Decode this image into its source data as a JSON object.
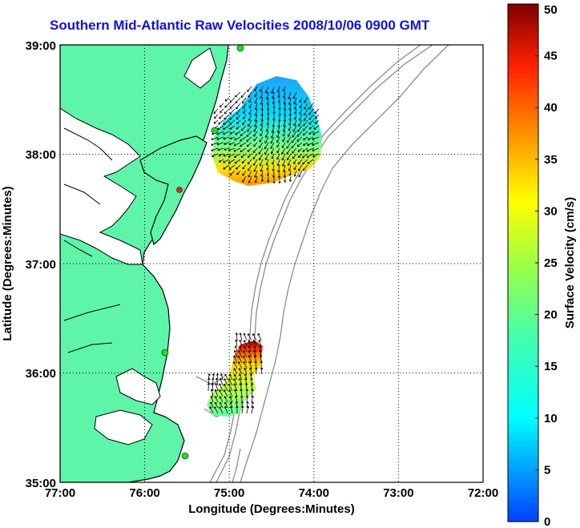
{
  "title": "Southern Mid-Atlantic Raw Velocities 2008/10/06 0900 GMT",
  "xlabel": "Longitude (Degrees:Minutes)",
  "ylabel": "Latitude (Degrees:Minutes)",
  "x_ticks": [
    "77:00",
    "76:00",
    "75:00",
    "74:00",
    "73:00",
    "72:00"
  ],
  "y_ticks": [
    "39:00",
    "38:00",
    "37:00",
    "36:00",
    "35:00"
  ],
  "colorbar": {
    "label": "Surface Velocity (cm/s)",
    "ticks": [
      "0",
      "5",
      "10",
      "15",
      "20",
      "25",
      "30",
      "35",
      "40",
      "45",
      "50"
    ],
    "range": [
      0,
      50
    ]
  },
  "colors": {
    "land": "#5ef5a8",
    "coast": "#000000",
    "bathymetry": "#8c8c8c",
    "grid": "#000000",
    "title": "#1010e0",
    "site_active": "#22dd22",
    "site_alert": "#ee2222"
  }
}
